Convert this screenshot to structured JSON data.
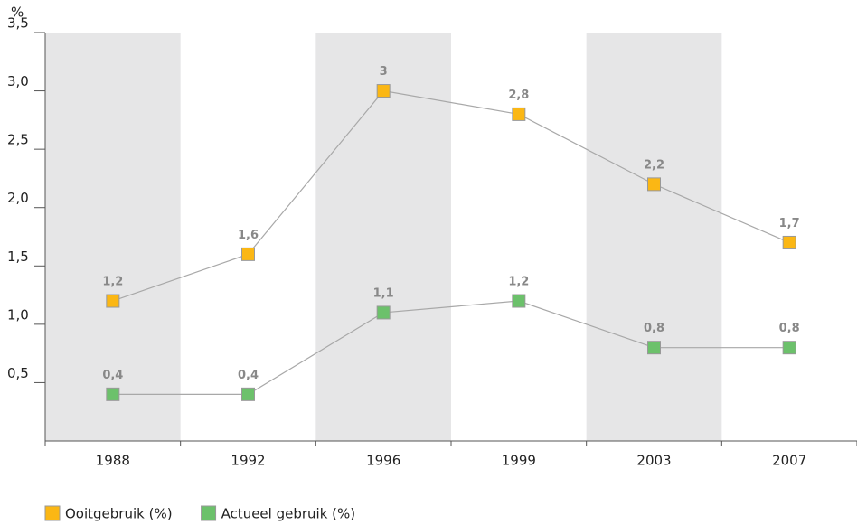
{
  "chart_data": {
    "type": "line",
    "y_label": "%",
    "categories": [
      "1988",
      "1992",
      "1996",
      "1999",
      "2003",
      "2007"
    ],
    "series": [
      {
        "name": "Ooitgebruik (%)",
        "color": "#fbb714",
        "values": [
          1.2,
          1.6,
          3,
          2.8,
          2.2,
          1.7
        ],
        "value_labels": [
          "1,2",
          "1,6",
          "3",
          "2,8",
          "2,2",
          "1,7"
        ]
      },
      {
        "name": "Actueel gebruik (%)",
        "color": "#6cc16b",
        "values": [
          0.4,
          0.4,
          1.1,
          1.2,
          0.8,
          0.8
        ],
        "value_labels": [
          "0,4",
          "0,4",
          "1,1",
          "1,2",
          "0,8",
          "0,8"
        ]
      }
    ],
    "ylim": [
      0,
      3.5
    ],
    "yticks": [
      {
        "value": 0.5,
        "label": "0,5"
      },
      {
        "value": 1.0,
        "label": "1,0"
      },
      {
        "value": 1.5,
        "label": "1,5"
      },
      {
        "value": 2.0,
        "label": "2,0"
      },
      {
        "value": 2.5,
        "label": "2,5"
      },
      {
        "value": 3.0,
        "label": "3,0"
      },
      {
        "value": 3.5,
        "label": "3,5"
      }
    ],
    "line_color": "#a8a8a8"
  }
}
